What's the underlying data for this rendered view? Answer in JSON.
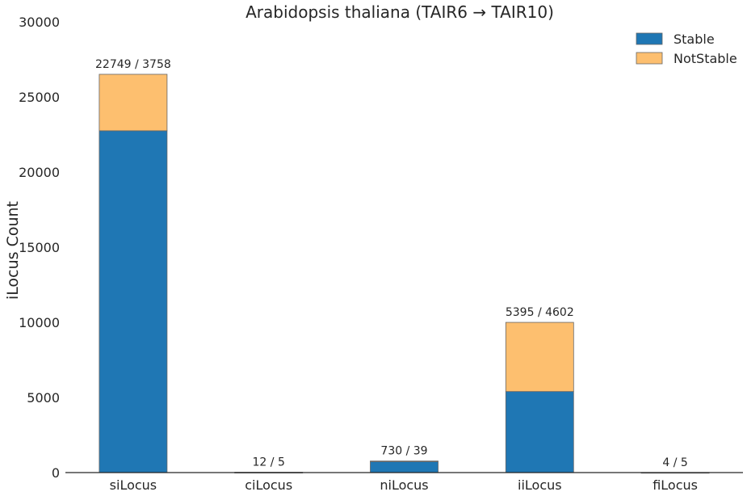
{
  "chart_data": {
    "type": "bar",
    "stacked": true,
    "title": "Arabidopsis thaliana (TAIR6 → TAIR10)",
    "xlabel": "",
    "ylabel": "iLocus Count",
    "ylim": [
      0,
      30000
    ],
    "yticks": [
      0,
      5000,
      10000,
      15000,
      20000,
      25000,
      30000
    ],
    "categories": [
      "siLocus",
      "ciLocus",
      "niLocus",
      "iiLocus",
      "fiLocus"
    ],
    "series": [
      {
        "name": "Stable",
        "values": [
          22749,
          12,
          730,
          5395,
          4
        ],
        "color": "#1f77b4"
      },
      {
        "name": "NotStable",
        "values": [
          3758,
          5,
          39,
          4602,
          5
        ],
        "color": "#fdbf6f"
      }
    ],
    "data_labels": [
      "22749 / 3758",
      "12 / 5",
      "730 / 39",
      "5395 / 4602",
      "4 / 5"
    ],
    "legend_position": "top-right",
    "grid": false
  }
}
